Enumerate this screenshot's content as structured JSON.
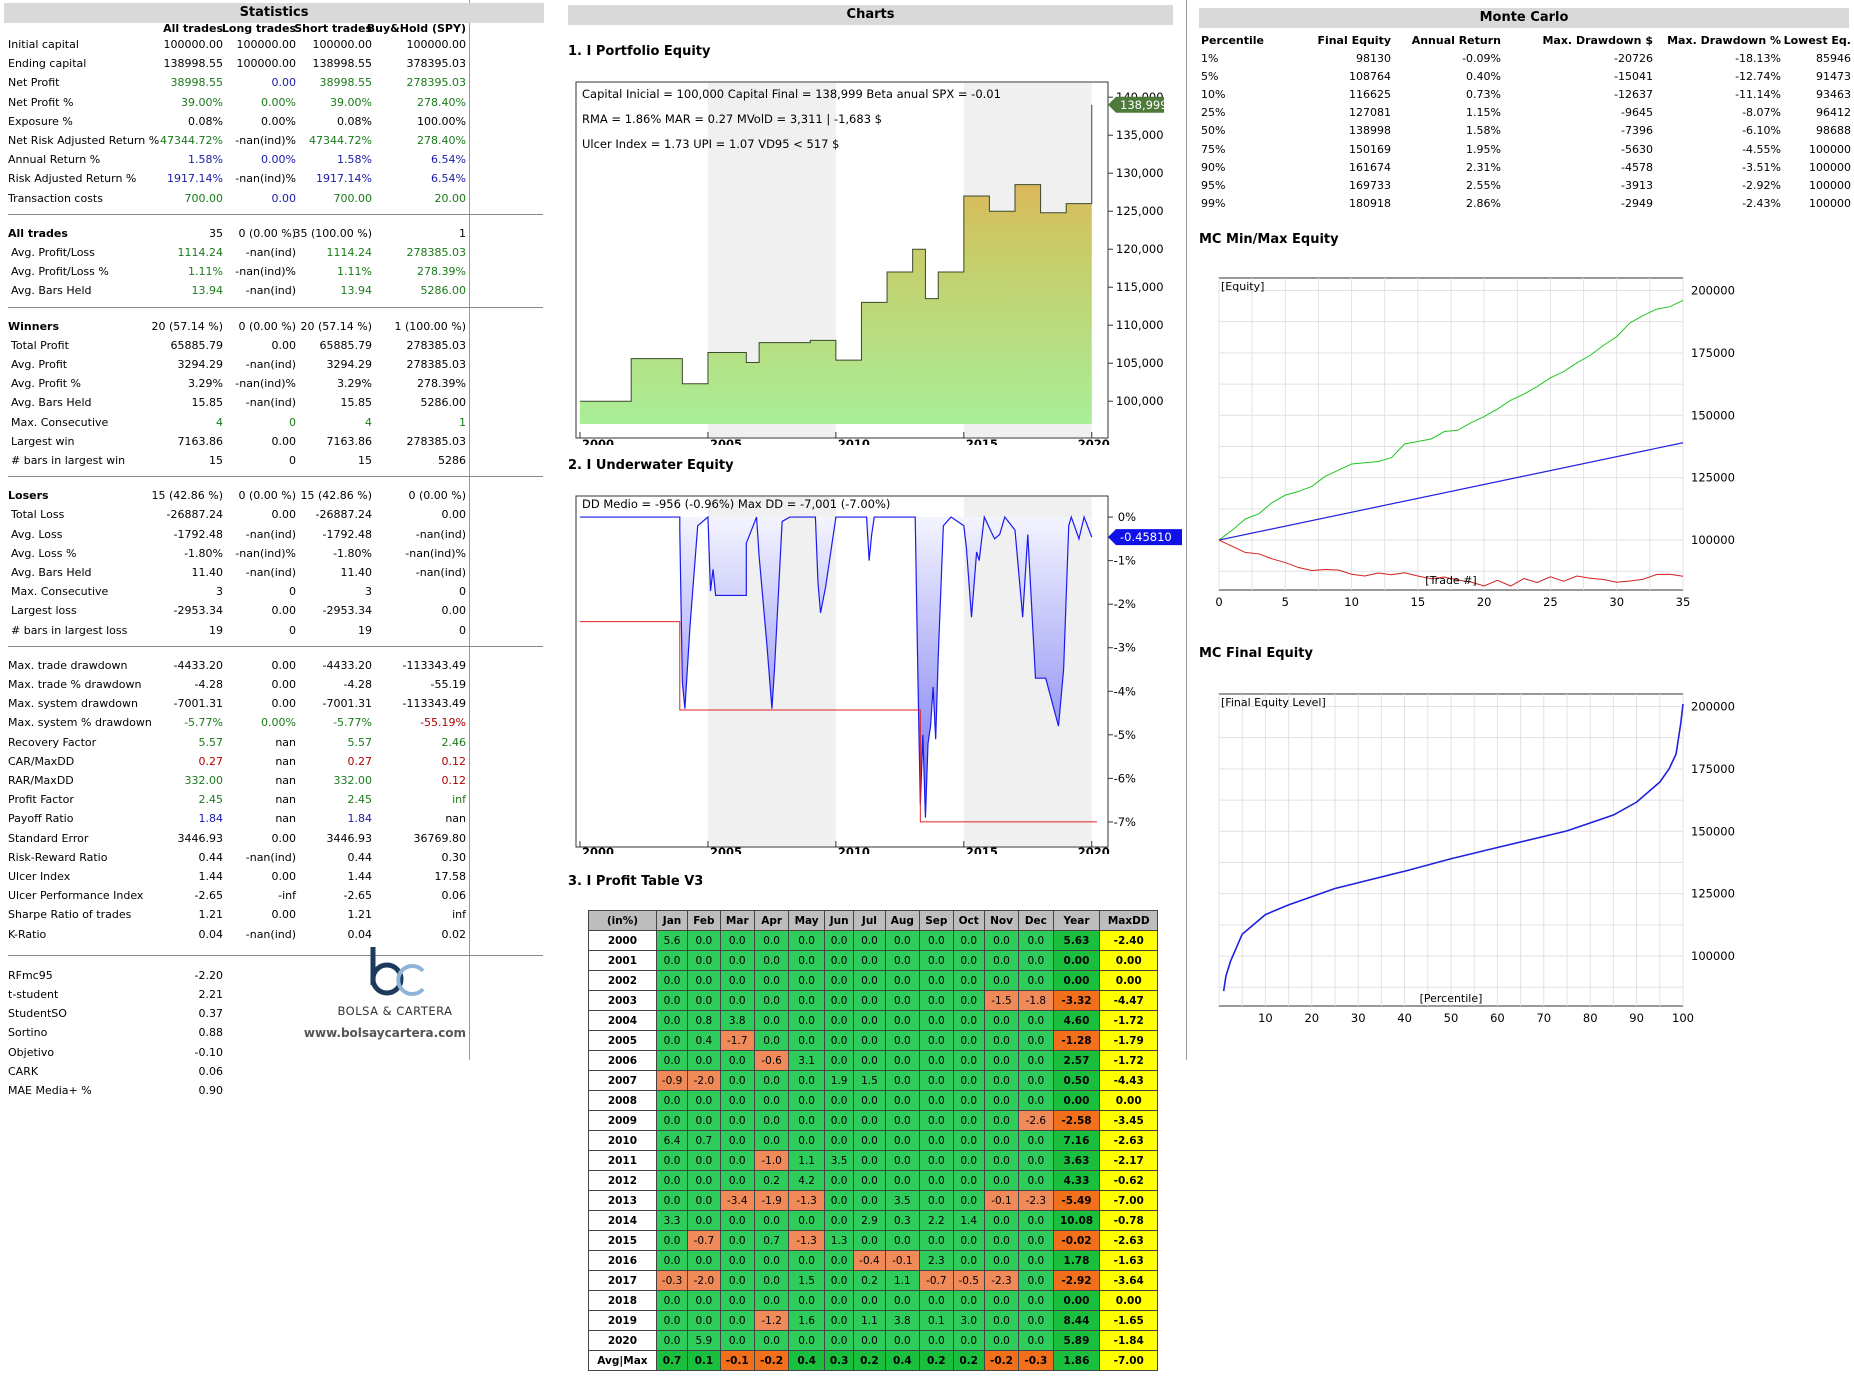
{
  "statistics": {
    "title": "Statistics",
    "headers": [
      "All trades",
      "Long trades",
      "Short trades",
      "Buy&Hold (SPY)"
    ],
    "groups": [
      [
        [
          "Initial capital",
          "100000.00",
          "100000.00",
          "100000.00",
          "100000.00",
          "k"
        ],
        [
          "Ending capital",
          "138998.55",
          "100000.00",
          "138998.55",
          "378395.03",
          "k"
        ],
        [
          "Net Profit",
          "38998.55",
          "0.00",
          "38998.55",
          "278395.03",
          "g"
        ],
        [
          "Net Profit %",
          "39.00%",
          "0.00%",
          "39.00%",
          "278.40%",
          "g"
        ],
        [
          "Exposure %",
          "0.08%",
          "0.00%",
          "0.08%",
          "100.00%",
          "k"
        ],
        [
          "Net Risk Adjusted Return %",
          "47344.72%",
          "-nan(ind)%",
          "47344.72%",
          "278.40%",
          "g"
        ],
        [
          "Annual Return %",
          "1.58%",
          "0.00%",
          "1.58%",
          "6.54%",
          "b"
        ],
        [
          "Risk Adjusted Return %",
          "1917.14%",
          "-nan(ind)%",
          "1917.14%",
          "6.54%",
          "b"
        ],
        [
          "Transaction costs",
          "700.00",
          "0.00",
          "700.00",
          "20.00",
          "g"
        ]
      ],
      [
        [
          "All trades",
          "35",
          "0 (0.00 %)",
          "35 (100.00 %)",
          "1",
          "k"
        ],
        [
          "Avg. Profit/Loss",
          "1114.24",
          "-nan(ind)",
          "1114.24",
          "278385.03",
          "g"
        ],
        [
          "Avg. Profit/Loss %",
          "1.11%",
          "-nan(ind)%",
          "1.11%",
          "278.39%",
          "g"
        ],
        [
          "Avg. Bars Held",
          "13.94",
          "-nan(ind)",
          "13.94",
          "5286.00",
          "g"
        ]
      ],
      [
        [
          "Winners",
          "20 (57.14 %)",
          "0 (0.00 %)",
          "20 (57.14 %)",
          "1 (100.00 %)",
          "k"
        ],
        [
          "Total Profit",
          "65885.79",
          "0.00",
          "65885.79",
          "278385.03",
          "k"
        ],
        [
          "Avg. Profit",
          "3294.29",
          "-nan(ind)",
          "3294.29",
          "278385.03",
          "k"
        ],
        [
          "Avg. Profit %",
          "3.29%",
          "-nan(ind)%",
          "3.29%",
          "278.39%",
          "k"
        ],
        [
          "Avg. Bars Held",
          "15.85",
          "-nan(ind)",
          "15.85",
          "5286.00",
          "k"
        ],
        [
          "Max. Consecutive",
          "4",
          "0",
          "4",
          "1",
          "g"
        ],
        [
          "Largest win",
          "7163.86",
          "0.00",
          "7163.86",
          "278385.03",
          "k"
        ],
        [
          "# bars in largest win",
          "15",
          "0",
          "15",
          "5286",
          "k"
        ]
      ],
      [
        [
          "Losers",
          "15 (42.86 %)",
          "0 (0.00 %)",
          "15 (42.86 %)",
          "0 (0.00 %)",
          "k"
        ],
        [
          "Total Loss",
          "-26887.24",
          "0.00",
          "-26887.24",
          "0.00",
          "k"
        ],
        [
          "Avg. Loss",
          "-1792.48",
          "-nan(ind)",
          "-1792.48",
          "-nan(ind)",
          "k"
        ],
        [
          "Avg. Loss %",
          "-1.80%",
          "-nan(ind)%",
          "-1.80%",
          "-nan(ind)%",
          "k"
        ],
        [
          "Avg. Bars Held",
          "11.40",
          "-nan(ind)",
          "11.40",
          "-nan(ind)",
          "k"
        ],
        [
          "Max. Consecutive",
          "3",
          "0",
          "3",
          "0",
          "k"
        ],
        [
          "Largest loss",
          "-2953.34",
          "0.00",
          "-2953.34",
          "0.00",
          "k"
        ],
        [
          "# bars in largest loss",
          "19",
          "0",
          "19",
          "0",
          "k"
        ]
      ],
      [
        [
          "Max. trade drawdown",
          "-4433.20",
          "0.00",
          "-4433.20",
          "-113343.49",
          "k"
        ],
        [
          "Max. trade % drawdown",
          "-4.28",
          "0.00",
          "-4.28",
          "-55.19",
          "k"
        ],
        [
          "Max. system drawdown",
          "-7001.31",
          "0.00",
          "-7001.31",
          "-113343.49",
          "k"
        ],
        [
          "Max. system % drawdown",
          "-5.77%",
          "0.00%",
          "-5.77%",
          "-55.19%",
          "gr"
        ],
        [
          "Recovery Factor",
          "5.57",
          "nan",
          "5.57",
          "2.46",
          "g"
        ],
        [
          "CAR/MaxDD",
          "0.27",
          "nan",
          "0.27",
          "0.12",
          "r"
        ],
        [
          "RAR/MaxDD",
          "332.00",
          "nan",
          "332.00",
          "0.12",
          "gr"
        ],
        [
          "Profit Factor",
          "2.45",
          "nan",
          "2.45",
          "inf",
          "g"
        ],
        [
          "Payoff Ratio",
          "1.84",
          "nan",
          "1.84",
          "nan",
          "b"
        ],
        [
          "Standard Error",
          "3446.93",
          "0.00",
          "3446.93",
          "36769.80",
          "k"
        ],
        [
          "Risk-Reward Ratio",
          "0.44",
          "-nan(ind)",
          "0.44",
          "0.30",
          "k"
        ],
        [
          "Ulcer Index",
          "1.44",
          "0.00",
          "1.44",
          "17.58",
          "k"
        ],
        [
          "Ulcer Performance Index",
          "-2.65",
          "-inf",
          "-2.65",
          "0.06",
          "k"
        ],
        [
          "Sharpe Ratio of trades",
          "1.21",
          "0.00",
          "1.21",
          "inf",
          "k"
        ],
        [
          "K-Ratio",
          "0.04",
          "-nan(ind)",
          "0.04",
          "0.02",
          "k"
        ]
      ]
    ],
    "extra": [
      [
        "RFmc95",
        "-2.20"
      ],
      [
        "t-student",
        "2.21"
      ],
      [
        "StudentSO",
        "0.37"
      ],
      [
        "Sortino",
        "0.88"
      ],
      [
        "Objetivo",
        "-0.10"
      ],
      [
        "CARK",
        "0.06"
      ],
      [
        "MAE Media+ %",
        "0.90"
      ]
    ],
    "logo_name": "BOLSA & CARTERA",
    "logo_url": "www.bolsaycartera.com"
  },
  "charts": {
    "title": "Charts",
    "portfolio": {
      "title": "1. I Portfolio Equity",
      "info": [
        "Capital Inicial = 100,000  Capital Final = 138,999  Beta anual SPX = -0.01",
        "RMA = 1.86%   MAR = 0.27   MVolD = 3,311 | -1,683 $",
        "Ulcer Index = 1.73   UPI = 1.07   VD95 < 517 $"
      ],
      "last": "138,999",
      "yticks": [
        "140,000",
        "135,000",
        "130,000",
        "125,000",
        "120,000",
        "115,000",
        "110,000",
        "105,000",
        "100,000"
      ],
      "xticks": [
        "2000",
        "2005",
        "2010",
        "2015",
        "2020"
      ]
    },
    "underwater": {
      "title": "2. I Underwater Equity",
      "info": "DD Medio = -956 (-0.96%)      Max DD = -7,001 (-7.00%)",
      "last": "-0.45810",
      "yticks": [
        "0%",
        "-1%",
        "-2%",
        "-3%",
        "-4%",
        "-5%",
        "-6%",
        "-7%"
      ],
      "xticks": [
        "2000",
        "2005",
        "2010",
        "2015",
        "2020"
      ]
    },
    "profit_table": {
      "title": "3. I Profit Table V3",
      "headers": [
        "(in%)",
        "Jan",
        "Feb",
        "Mar",
        "Apr",
        "May",
        "Jun",
        "Jul",
        "Aug",
        "Sep",
        "Oct",
        "Nov",
        "Dec",
        "Year",
        "MaxDD"
      ],
      "rows": [
        [
          "2000",
          "5.6",
          "0.0",
          "0.0",
          "0.0",
          "0.0",
          "0.0",
          "0.0",
          "0.0",
          "0.0",
          "0.0",
          "0.0",
          "0.0",
          "5.63",
          "-2.40"
        ],
        [
          "2001",
          "0.0",
          "0.0",
          "0.0",
          "0.0",
          "0.0",
          "0.0",
          "0.0",
          "0.0",
          "0.0",
          "0.0",
          "0.0",
          "0.0",
          "0.00",
          "0.00"
        ],
        [
          "2002",
          "0.0",
          "0.0",
          "0.0",
          "0.0",
          "0.0",
          "0.0",
          "0.0",
          "0.0",
          "0.0",
          "0.0",
          "0.0",
          "0.0",
          "0.00",
          "0.00"
        ],
        [
          "2003",
          "0.0",
          "0.0",
          "0.0",
          "0.0",
          "0.0",
          "0.0",
          "0.0",
          "0.0",
          "0.0",
          "0.0",
          "-1.5",
          "-1.8",
          "-3.32",
          "-4.47"
        ],
        [
          "2004",
          "0.0",
          "0.8",
          "3.8",
          "0.0",
          "0.0",
          "0.0",
          "0.0",
          "0.0",
          "0.0",
          "0.0",
          "0.0",
          "0.0",
          "4.60",
          "-1.72"
        ],
        [
          "2005",
          "0.0",
          "0.4",
          "-1.7",
          "0.0",
          "0.0",
          "0.0",
          "0.0",
          "0.0",
          "0.0",
          "0.0",
          "0.0",
          "0.0",
          "-1.28",
          "-1.79"
        ],
        [
          "2006",
          "0.0",
          "0.0",
          "0.0",
          "-0.6",
          "3.1",
          "0.0",
          "0.0",
          "0.0",
          "0.0",
          "0.0",
          "0.0",
          "0.0",
          "2.57",
          "-1.72"
        ],
        [
          "2007",
          "-0.9",
          "-2.0",
          "0.0",
          "0.0",
          "0.0",
          "1.9",
          "1.5",
          "0.0",
          "0.0",
          "0.0",
          "0.0",
          "0.0",
          "0.50",
          "-4.43"
        ],
        [
          "2008",
          "0.0",
          "0.0",
          "0.0",
          "0.0",
          "0.0",
          "0.0",
          "0.0",
          "0.0",
          "0.0",
          "0.0",
          "0.0",
          "0.0",
          "0.00",
          "0.00"
        ],
        [
          "2009",
          "0.0",
          "0.0",
          "0.0",
          "0.0",
          "0.0",
          "0.0",
          "0.0",
          "0.0",
          "0.0",
          "0.0",
          "0.0",
          "-2.6",
          "-2.58",
          "-3.45"
        ],
        [
          "2010",
          "6.4",
          "0.7",
          "0.0",
          "0.0",
          "0.0",
          "0.0",
          "0.0",
          "0.0",
          "0.0",
          "0.0",
          "0.0",
          "0.0",
          "7.16",
          "-2.63"
        ],
        [
          "2011",
          "0.0",
          "0.0",
          "0.0",
          "-1.0",
          "1.1",
          "3.5",
          "0.0",
          "0.0",
          "0.0",
          "0.0",
          "0.0",
          "0.0",
          "3.63",
          "-2.17"
        ],
        [
          "2012",
          "0.0",
          "0.0",
          "0.0",
          "0.2",
          "4.2",
          "0.0",
          "0.0",
          "0.0",
          "0.0",
          "0.0",
          "0.0",
          "0.0",
          "4.33",
          "-0.62"
        ],
        [
          "2013",
          "0.0",
          "0.0",
          "-3.4",
          "-1.9",
          "-1.3",
          "0.0",
          "0.0",
          "3.5",
          "0.0",
          "0.0",
          "-0.1",
          "-2.3",
          "-5.49",
          "-7.00"
        ],
        [
          "2014",
          "3.3",
          "0.0",
          "0.0",
          "0.0",
          "0.0",
          "0.0",
          "2.9",
          "0.3",
          "2.2",
          "1.4",
          "0.0",
          "0.0",
          "10.08",
          "-0.78"
        ],
        [
          "2015",
          "0.0",
          "-0.7",
          "0.0",
          "0.7",
          "-1.3",
          "1.3",
          "0.0",
          "0.0",
          "0.0",
          "0.0",
          "0.0",
          "0.0",
          "-0.02",
          "-2.63"
        ],
        [
          "2016",
          "0.0",
          "0.0",
          "0.0",
          "0.0",
          "0.0",
          "0.0",
          "-0.4",
          "-0.1",
          "2.3",
          "0.0",
          "0.0",
          "0.0",
          "1.78",
          "-1.63"
        ],
        [
          "2017",
          "-0.3",
          "-2.0",
          "0.0",
          "0.0",
          "1.5",
          "0.0",
          "0.2",
          "1.1",
          "-0.7",
          "-0.5",
          "-2.3",
          "0.0",
          "-2.92",
          "-3.64"
        ],
        [
          "2018",
          "0.0",
          "0.0",
          "0.0",
          "0.0",
          "0.0",
          "0.0",
          "0.0",
          "0.0",
          "0.0",
          "0.0",
          "0.0",
          "0.0",
          "0.00",
          "0.00"
        ],
        [
          "2019",
          "0.0",
          "0.0",
          "0.0",
          "-1.2",
          "1.6",
          "0.0",
          "1.1",
          "3.8",
          "0.1",
          "3.0",
          "0.0",
          "0.0",
          "8.44",
          "-1.65"
        ],
        [
          "2020",
          "0.0",
          "5.9",
          "0.0",
          "0.0",
          "0.0",
          "0.0",
          "0.0",
          "0.0",
          "0.0",
          "0.0",
          "0.0",
          "0.0",
          "5.89",
          "-1.84"
        ],
        [
          "Avg|Max",
          "0.7",
          "0.1",
          "-0.1",
          "-0.2",
          "0.4",
          "0.3",
          "0.2",
          "0.4",
          "0.2",
          "0.2",
          "-0.2",
          "-0.3",
          "1.86",
          "-7.00"
        ]
      ]
    }
  },
  "monte_carlo": {
    "title": "Monte Carlo",
    "headers": [
      "Percentile",
      "Final Equity",
      "Annual Return",
      "Max. Drawdown $",
      "Max. Drawdown %",
      "Lowest Eq."
    ],
    "rows": [
      [
        "1%",
        "98130",
        "-0.09%",
        "-20726",
        "-18.13%",
        "85946"
      ],
      [
        "5%",
        "108764",
        "0.40%",
        "-15041",
        "-12.74%",
        "91473"
      ],
      [
        "10%",
        "116625",
        "0.73%",
        "-12637",
        "-11.14%",
        "93463"
      ],
      [
        "25%",
        "127081",
        "1.15%",
        "-9645",
        "-8.07%",
        "96412"
      ],
      [
        "50%",
        "138998",
        "1.58%",
        "-7396",
        "-6.10%",
        "98688"
      ],
      [
        "75%",
        "150169",
        "1.95%",
        "-5630",
        "-4.55%",
        "100000"
      ],
      [
        "90%",
        "161674",
        "2.31%",
        "-4578",
        "-3.51%",
        "100000"
      ],
      [
        "95%",
        "169733",
        "2.55%",
        "-3913",
        "-2.92%",
        "100000"
      ],
      [
        "99%",
        "180918",
        "2.86%",
        "-2949",
        "-2.43%",
        "100000"
      ]
    ],
    "minmax": {
      "title": "MC Min/Max Equity",
      "legend": "[Equity]",
      "xlabel": "[Trade #]",
      "yticks": [
        "200000",
        "175000",
        "150000",
        "125000",
        "100000"
      ],
      "xticks": [
        "0",
        "5",
        "10",
        "15",
        "20",
        "25",
        "30",
        "35"
      ]
    },
    "final": {
      "title": "MC Final Equity",
      "legend": "[Final Equity Level]",
      "xlabel": "[Percentile]",
      "yticks": [
        "200000",
        "175000",
        "150000",
        "125000",
        "100000"
      ],
      "xticks": [
        "10",
        "20",
        "30",
        "40",
        "50",
        "60",
        "70",
        "80",
        "90",
        "100"
      ]
    }
  },
  "chart_data": [
    {
      "type": "area",
      "title": "1. I Portfolio Equity",
      "x": [
        2000,
        2002,
        2003.9,
        2004,
        2005,
        2006.5,
        2007,
        2009,
        2010,
        2011,
        2012,
        2013,
        2013.5,
        2014,
        2015,
        2016,
        2017,
        2018,
        2019,
        2020
      ],
      "y": [
        100000,
        105600,
        105600,
        102300,
        106400,
        105100,
        107700,
        108000,
        105400,
        113000,
        117000,
        120000,
        113500,
        117000,
        127000,
        125000,
        128500,
        124800,
        126000,
        138999
      ],
      "ylim": [
        97000,
        142000
      ]
    },
    {
      "type": "area",
      "title": "2. I Underwater Equity",
      "ylim": [
        -7.3,
        0.3
      ]
    },
    {
      "type": "line",
      "title": "MC Min/Max Equity",
      "series": [
        {
          "name": "max",
          "x": [
            0,
            35
          ],
          "y": [
            100000,
            201000
          ]
        },
        {
          "name": "median",
          "x": [
            0,
            35
          ],
          "y": [
            100000,
            139000
          ]
        },
        {
          "name": "min",
          "x": [
            0,
            35
          ],
          "y": [
            100000,
            85000
          ]
        }
      ],
      "ylim": [
        80000,
        205000
      ]
    },
    {
      "type": "line",
      "title": "MC Final Equity",
      "x": [
        0,
        100
      ],
      "y": [
        85946,
        201000
      ],
      "ylim": [
        80000,
        205000
      ]
    }
  ]
}
